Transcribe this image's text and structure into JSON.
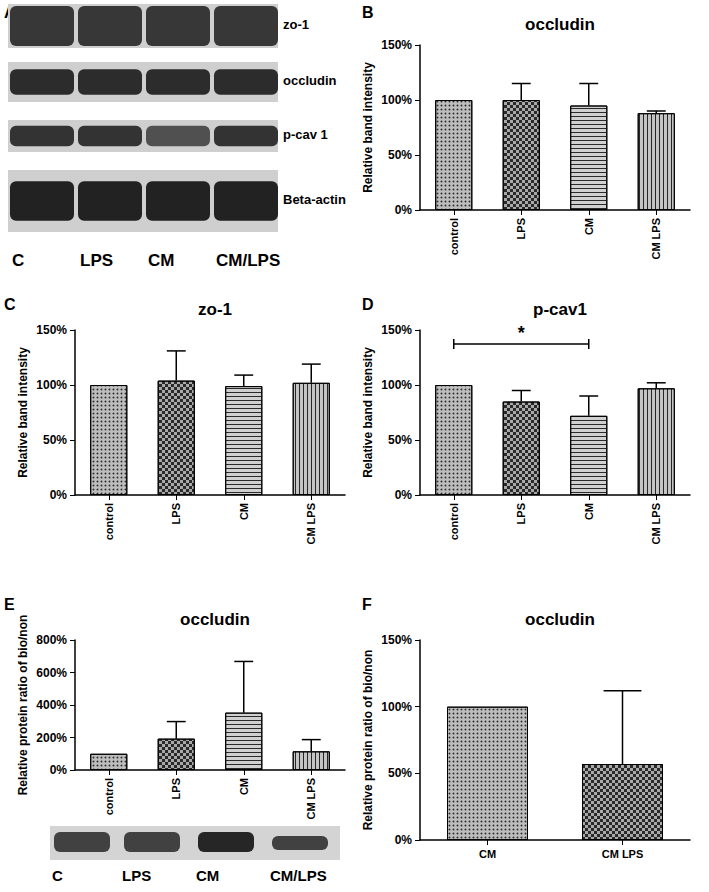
{
  "chart_data": [
    {
      "panel": "B",
      "type": "bar",
      "title": "occludin",
      "categories": [
        "control",
        "LPS",
        "CM",
        "CM LPS"
      ],
      "values": [
        100,
        100,
        95,
        88
      ],
      "errors": [
        0,
        15,
        20,
        2
      ],
      "colors": [
        "#bdbdbd",
        "#a9a9a9",
        "#d0d0d0",
        "#c4c4c4"
      ],
      "ylabel": "Relative band intensity",
      "ylim": [
        0,
        150
      ],
      "yticks": [
        {
          "value": 0,
          "label": "0%"
        },
        {
          "value": 50,
          "label": "50%"
        },
        {
          "value": 100,
          "label": "100%"
        },
        {
          "value": 150,
          "label": "150%"
        }
      ],
      "grid": false
    },
    {
      "panel": "C",
      "type": "bar",
      "title": "zo-1",
      "categories": [
        "control",
        "LPS",
        "CM",
        "CM LPS"
      ],
      "values": [
        100,
        104,
        99,
        102
      ],
      "errors": [
        0,
        27,
        10,
        17
      ],
      "colors": [
        "#bdbdbd",
        "#a9a9a9",
        "#d0d0d0",
        "#c4c4c4"
      ],
      "ylabel": "Relative band intensity",
      "ylim": [
        0,
        150
      ],
      "yticks": [
        {
          "value": 0,
          "label": "0%"
        },
        {
          "value": 50,
          "label": "50%"
        },
        {
          "value": 100,
          "label": "100%"
        },
        {
          "value": 150,
          "label": "150%"
        }
      ],
      "grid": false
    },
    {
      "panel": "D",
      "type": "bar",
      "title": "p-cav1",
      "categories": [
        "control",
        "LPS",
        "CM",
        "CM LPS"
      ],
      "values": [
        100,
        85,
        72,
        97
      ],
      "errors": [
        0,
        10,
        18,
        5
      ],
      "colors": [
        "#bdbdbd",
        "#a9a9a9",
        "#d0d0d0",
        "#c4c4c4"
      ],
      "ylabel": "Relative band intensity",
      "ylim": [
        0,
        150
      ],
      "yticks": [
        {
          "value": 0,
          "label": "0%"
        },
        {
          "value": 50,
          "label": "50%"
        },
        {
          "value": 100,
          "label": "100%"
        },
        {
          "value": 150,
          "label": "150%"
        }
      ],
      "annotations": [
        {
          "text": "*",
          "from": "control",
          "to": "CM"
        }
      ],
      "grid": false
    },
    {
      "panel": "E",
      "type": "bar",
      "title": "occludin",
      "categories": [
        "control",
        "LPS",
        "CM",
        "CM LPS"
      ],
      "values": [
        100,
        193,
        353,
        115
      ],
      "errors": [
        0,
        105,
        315,
        72
      ],
      "colors": [
        "#bdbdbd",
        "#a9a9a9",
        "#d0d0d0",
        "#c4c4c4"
      ],
      "ylabel": "Relative protein ratio of bio/non",
      "ylim": [
        0,
        800
      ],
      "yticks": [
        {
          "value": 0,
          "label": "0%"
        },
        {
          "value": 200,
          "label": "200%"
        },
        {
          "value": 400,
          "label": "400%"
        },
        {
          "value": 600,
          "label": "600%"
        },
        {
          "value": 800,
          "label": "800%"
        }
      ],
      "grid": false
    },
    {
      "panel": "F",
      "type": "bar",
      "title": "occludin",
      "categories": [
        "CM",
        "CM LPS"
      ],
      "values": [
        100,
        57
      ],
      "errors": [
        0,
        55
      ],
      "colors": [
        "#bdbdbd",
        "#a9a9a9"
      ],
      "ylabel": "Relative protein ratio of bio/non",
      "ylim": [
        0,
        150
      ],
      "yticks": [
        {
          "value": 0,
          "label": "0%"
        },
        {
          "value": 50,
          "label": "50%"
        },
        {
          "value": 100,
          "label": "100%"
        },
        {
          "value": 150,
          "label": "150%"
        }
      ],
      "grid": false
    }
  ],
  "blot_A": {
    "panel": "A",
    "rows": [
      "zo-1",
      "occludin",
      "p-cav 1",
      "Beta-actin"
    ],
    "lanes": [
      "C",
      "LPS",
      "CM",
      "CM/LPS"
    ]
  },
  "blot_E": {
    "lanes": [
      "C",
      "LPS",
      "CM",
      "CM/LPS"
    ]
  }
}
